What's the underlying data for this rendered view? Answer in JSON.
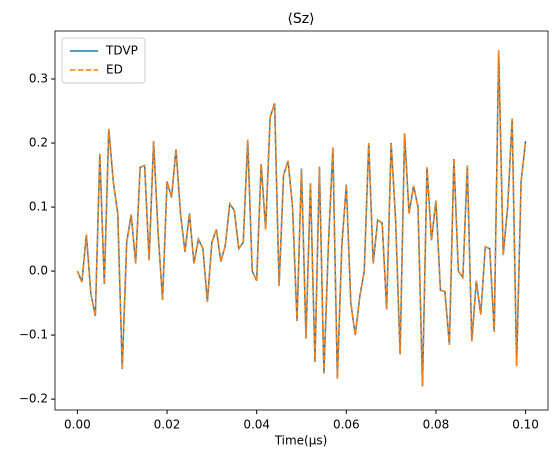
{
  "chart_data": {
    "type": "line",
    "title": "⟨Sz⟩",
    "x_label": "Time(μs)",
    "x": [
      0,
      0.001,
      0.002,
      0.003,
      0.004,
      0.005,
      0.006,
      0.007,
      0.008,
      0.009,
      0.01,
      0.011,
      0.012,
      0.013,
      0.014,
      0.015,
      0.016,
      0.017,
      0.018,
      0.019,
      0.02,
      0.021,
      0.022,
      0.023,
      0.024,
      0.025,
      0.026,
      0.027,
      0.028,
      0.029,
      0.03,
      0.031,
      0.032,
      0.033,
      0.034,
      0.035,
      0.036,
      0.037,
      0.038,
      0.039,
      0.04,
      0.041,
      0.042,
      0.043,
      0.044,
      0.045,
      0.046,
      0.047,
      0.048,
      0.049,
      0.05,
      0.051,
      0.052,
      0.053,
      0.054,
      0.055,
      0.056,
      0.057,
      0.058,
      0.059,
      0.06,
      0.061,
      0.062,
      0.063,
      0.064,
      0.065,
      0.066,
      0.067,
      0.068,
      0.069,
      0.07,
      0.071,
      0.072,
      0.073,
      0.074,
      0.075,
      0.076,
      0.077,
      0.078,
      0.079,
      0.08,
      0.081,
      0.082,
      0.083,
      0.084,
      0.085,
      0.086,
      0.087,
      0.088,
      0.089,
      0.09,
      0.091,
      0.092,
      0.093,
      0.094,
      0.095,
      0.096,
      0.097,
      0.098,
      0.099,
      0.1
    ],
    "series": [
      {
        "name": "TDVP",
        "color": "#1f77b4",
        "dash": false,
        "values": [
          0.0,
          -0.017,
          0.057,
          -0.035,
          -0.07,
          0.183,
          -0.02,
          0.222,
          0.14,
          0.09,
          -0.153,
          0.045,
          0.088,
          0.012,
          0.162,
          0.165,
          0.017,
          0.203,
          0.06,
          -0.045,
          0.14,
          0.115,
          0.19,
          0.09,
          0.03,
          0.09,
          0.012,
          0.05,
          0.035,
          -0.048,
          0.045,
          0.065,
          0.015,
          0.04,
          0.105,
          0.095,
          0.035,
          0.045,
          0.205,
          0.0,
          -0.015,
          0.167,
          0.065,
          0.24,
          0.262,
          -0.023,
          0.15,
          0.172,
          0.1,
          -0.078,
          0.16,
          -0.105,
          0.137,
          -0.142,
          0.163,
          -0.16,
          0.04,
          0.193,
          -0.168,
          0.04,
          0.135,
          -0.05,
          -0.1,
          -0.04,
          0.0,
          0.2,
          0.012,
          0.08,
          0.075,
          -0.06,
          0.2,
          0.08,
          -0.13,
          0.215,
          0.09,
          0.133,
          0.1,
          -0.18,
          0.162,
          0.048,
          0.11,
          -0.03,
          -0.032,
          -0.115,
          0.175,
          0.0,
          -0.01,
          0.165,
          -0.11,
          -0.015,
          -0.068,
          0.038,
          0.035,
          -0.095,
          0.345,
          0.025,
          0.1,
          0.238,
          -0.148,
          0.14,
          0.203
        ]
      },
      {
        "name": "ED",
        "color": "#ff7f0e",
        "dash": true,
        "values": [
          0.0,
          -0.017,
          0.057,
          -0.035,
          -0.07,
          0.183,
          -0.02,
          0.222,
          0.14,
          0.09,
          -0.153,
          0.045,
          0.088,
          0.012,
          0.162,
          0.165,
          0.017,
          0.203,
          0.06,
          -0.045,
          0.14,
          0.115,
          0.19,
          0.09,
          0.03,
          0.09,
          0.012,
          0.05,
          0.035,
          -0.048,
          0.045,
          0.065,
          0.015,
          0.04,
          0.105,
          0.095,
          0.035,
          0.045,
          0.205,
          0.0,
          -0.015,
          0.167,
          0.065,
          0.24,
          0.262,
          -0.023,
          0.15,
          0.172,
          0.1,
          -0.078,
          0.16,
          -0.105,
          0.137,
          -0.142,
          0.163,
          -0.16,
          0.04,
          0.193,
          -0.168,
          0.04,
          0.135,
          -0.05,
          -0.1,
          -0.04,
          0.0,
          0.2,
          0.012,
          0.08,
          0.075,
          -0.06,
          0.2,
          0.08,
          -0.13,
          0.215,
          0.09,
          0.133,
          0.1,
          -0.18,
          0.162,
          0.048,
          0.11,
          -0.03,
          -0.032,
          -0.115,
          0.175,
          0.0,
          -0.01,
          0.165,
          -0.11,
          -0.015,
          -0.068,
          0.038,
          0.035,
          -0.095,
          0.345,
          0.025,
          0.1,
          0.238,
          -0.148,
          0.14,
          0.203
        ]
      }
    ],
    "xlim": [
      -0.005,
      0.105
    ],
    "xticks": [
      {
        "value": 0,
        "label": "0.00"
      },
      {
        "value": 0.02,
        "label": "0.02"
      },
      {
        "value": 0.04,
        "label": "0.04"
      },
      {
        "value": 0.06,
        "label": "0.06"
      },
      {
        "value": 0.08,
        "label": "0.08"
      },
      {
        "value": 0.1,
        "label": "0.10"
      }
    ],
    "ylim": [
      -0.217,
      0.375
    ],
    "yticks": [
      {
        "value": -0.2,
        "label": "−0.2"
      },
      {
        "value": -0.1,
        "label": "−0.1"
      },
      {
        "value": 0,
        "label": "0.0"
      },
      {
        "value": 0.1,
        "label": "0.1"
      },
      {
        "value": 0.2,
        "label": "0.2"
      },
      {
        "value": 0.3,
        "label": "0.3"
      }
    ],
    "grid": false,
    "legend": "upper left"
  }
}
